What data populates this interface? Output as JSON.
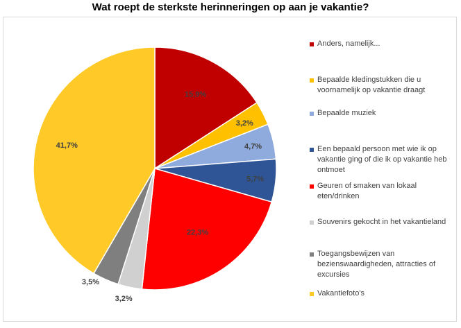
{
  "chart_data": {
    "type": "pie",
    "title": "Wat roept de sterkste herinneringen op aan je vakantie?",
    "legend_position": "right",
    "slices": [
      {
        "label": "Anders, namelijk...",
        "value": 15.9,
        "value_label": "15,9%",
        "color": "#c00000"
      },
      {
        "label": "Bepaalde kledingstukken die u voornamelijk op vakantie draagt",
        "value": 3.2,
        "value_label": "3,2%",
        "color": "#ffc000"
      },
      {
        "label": "Bepaalde muziek",
        "value": 4.7,
        "value_label": "4,7%",
        "color": "#8faadc"
      },
      {
        "label": "Een bepaald persoon met wie ik op vakantie ging of die ik op vakantie heb ontmoet",
        "value": 5.7,
        "value_label": "5,7%",
        "color": "#2f5597"
      },
      {
        "label": "Geuren of smaken van lokaal eten/drinken",
        "value": 22.3,
        "value_label": "22,3%",
        "color": "#ff0000"
      },
      {
        "label": "Souvenirs gekocht in het vakantieland",
        "value": 3.2,
        "value_label": "3,2%",
        "color": "#d0d0d0"
      },
      {
        "label": "Toegangsbewijzen van bezienswaardigheden, attracties of excursies",
        "value": 3.5,
        "value_label": "3,5%",
        "color": "#7f7f7f"
      },
      {
        "label": "Vakantiefoto's",
        "value": 41.7,
        "value_label": "41,7%",
        "color": "#ffca28"
      }
    ]
  }
}
